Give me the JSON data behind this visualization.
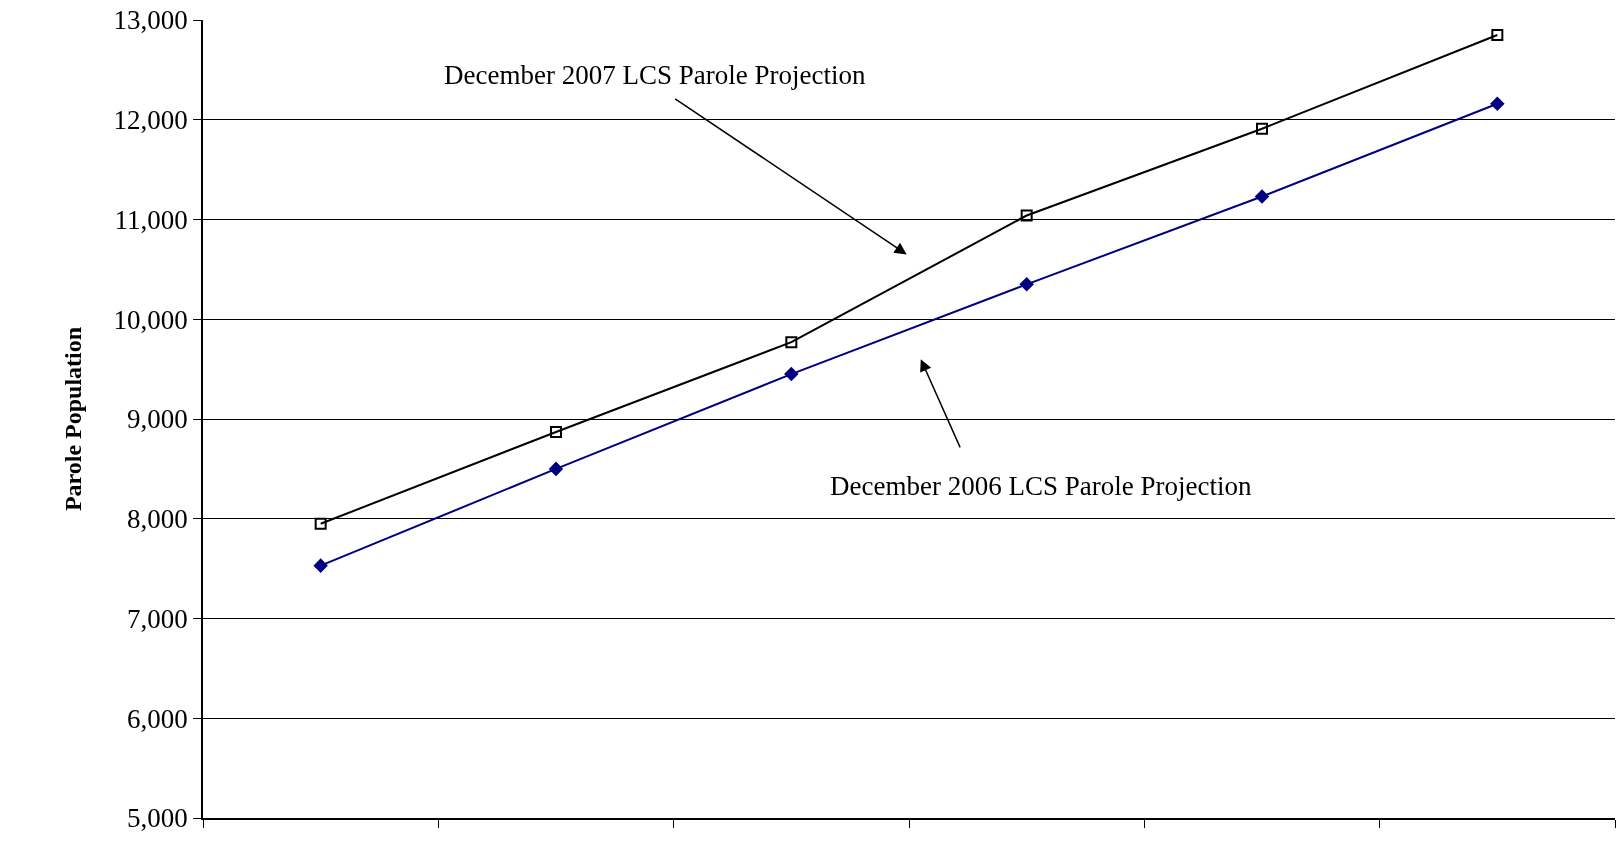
{
  "chart_data": {
    "type": "line",
    "ylabel": "Parole Population",
    "categories": [
      null,
      null,
      null,
      null,
      null,
      null
    ],
    "series": [
      {
        "color": "#000000",
        "marker": "square",
        "values": [
          7950,
          8870,
          9770,
          11040,
          11910,
          12850
        ]
      },
      {
        "color": "#000080",
        "marker": "diamond",
        "values": [
          7530,
          8500,
          9450,
          10350,
          11230,
          12160
        ]
      }
    ],
    "annotations": [
      "December 2007 LCS Parole Projection",
      "December 2006 LCS Parole Projection"
    ],
    "ylim": [
      5000,
      13000
    ],
    "yticks": [
      {
        "value": 5000,
        "label": "5,000"
      },
      {
        "value": 6000,
        "label": "6,000"
      },
      {
        "value": 7000,
        "label": "7,000"
      },
      {
        "value": 8000,
        "label": "8,000"
      },
      {
        "value": 9000,
        "label": "9,000"
      },
      {
        "value": 10000,
        "label": "10,000"
      },
      {
        "value": 11000,
        "label": "11,000"
      },
      {
        "value": 12000,
        "label": "12,000"
      },
      {
        "value": 13000,
        "label": "13,000"
      }
    ],
    "grid": "y",
    "tick_labels": "y"
  }
}
